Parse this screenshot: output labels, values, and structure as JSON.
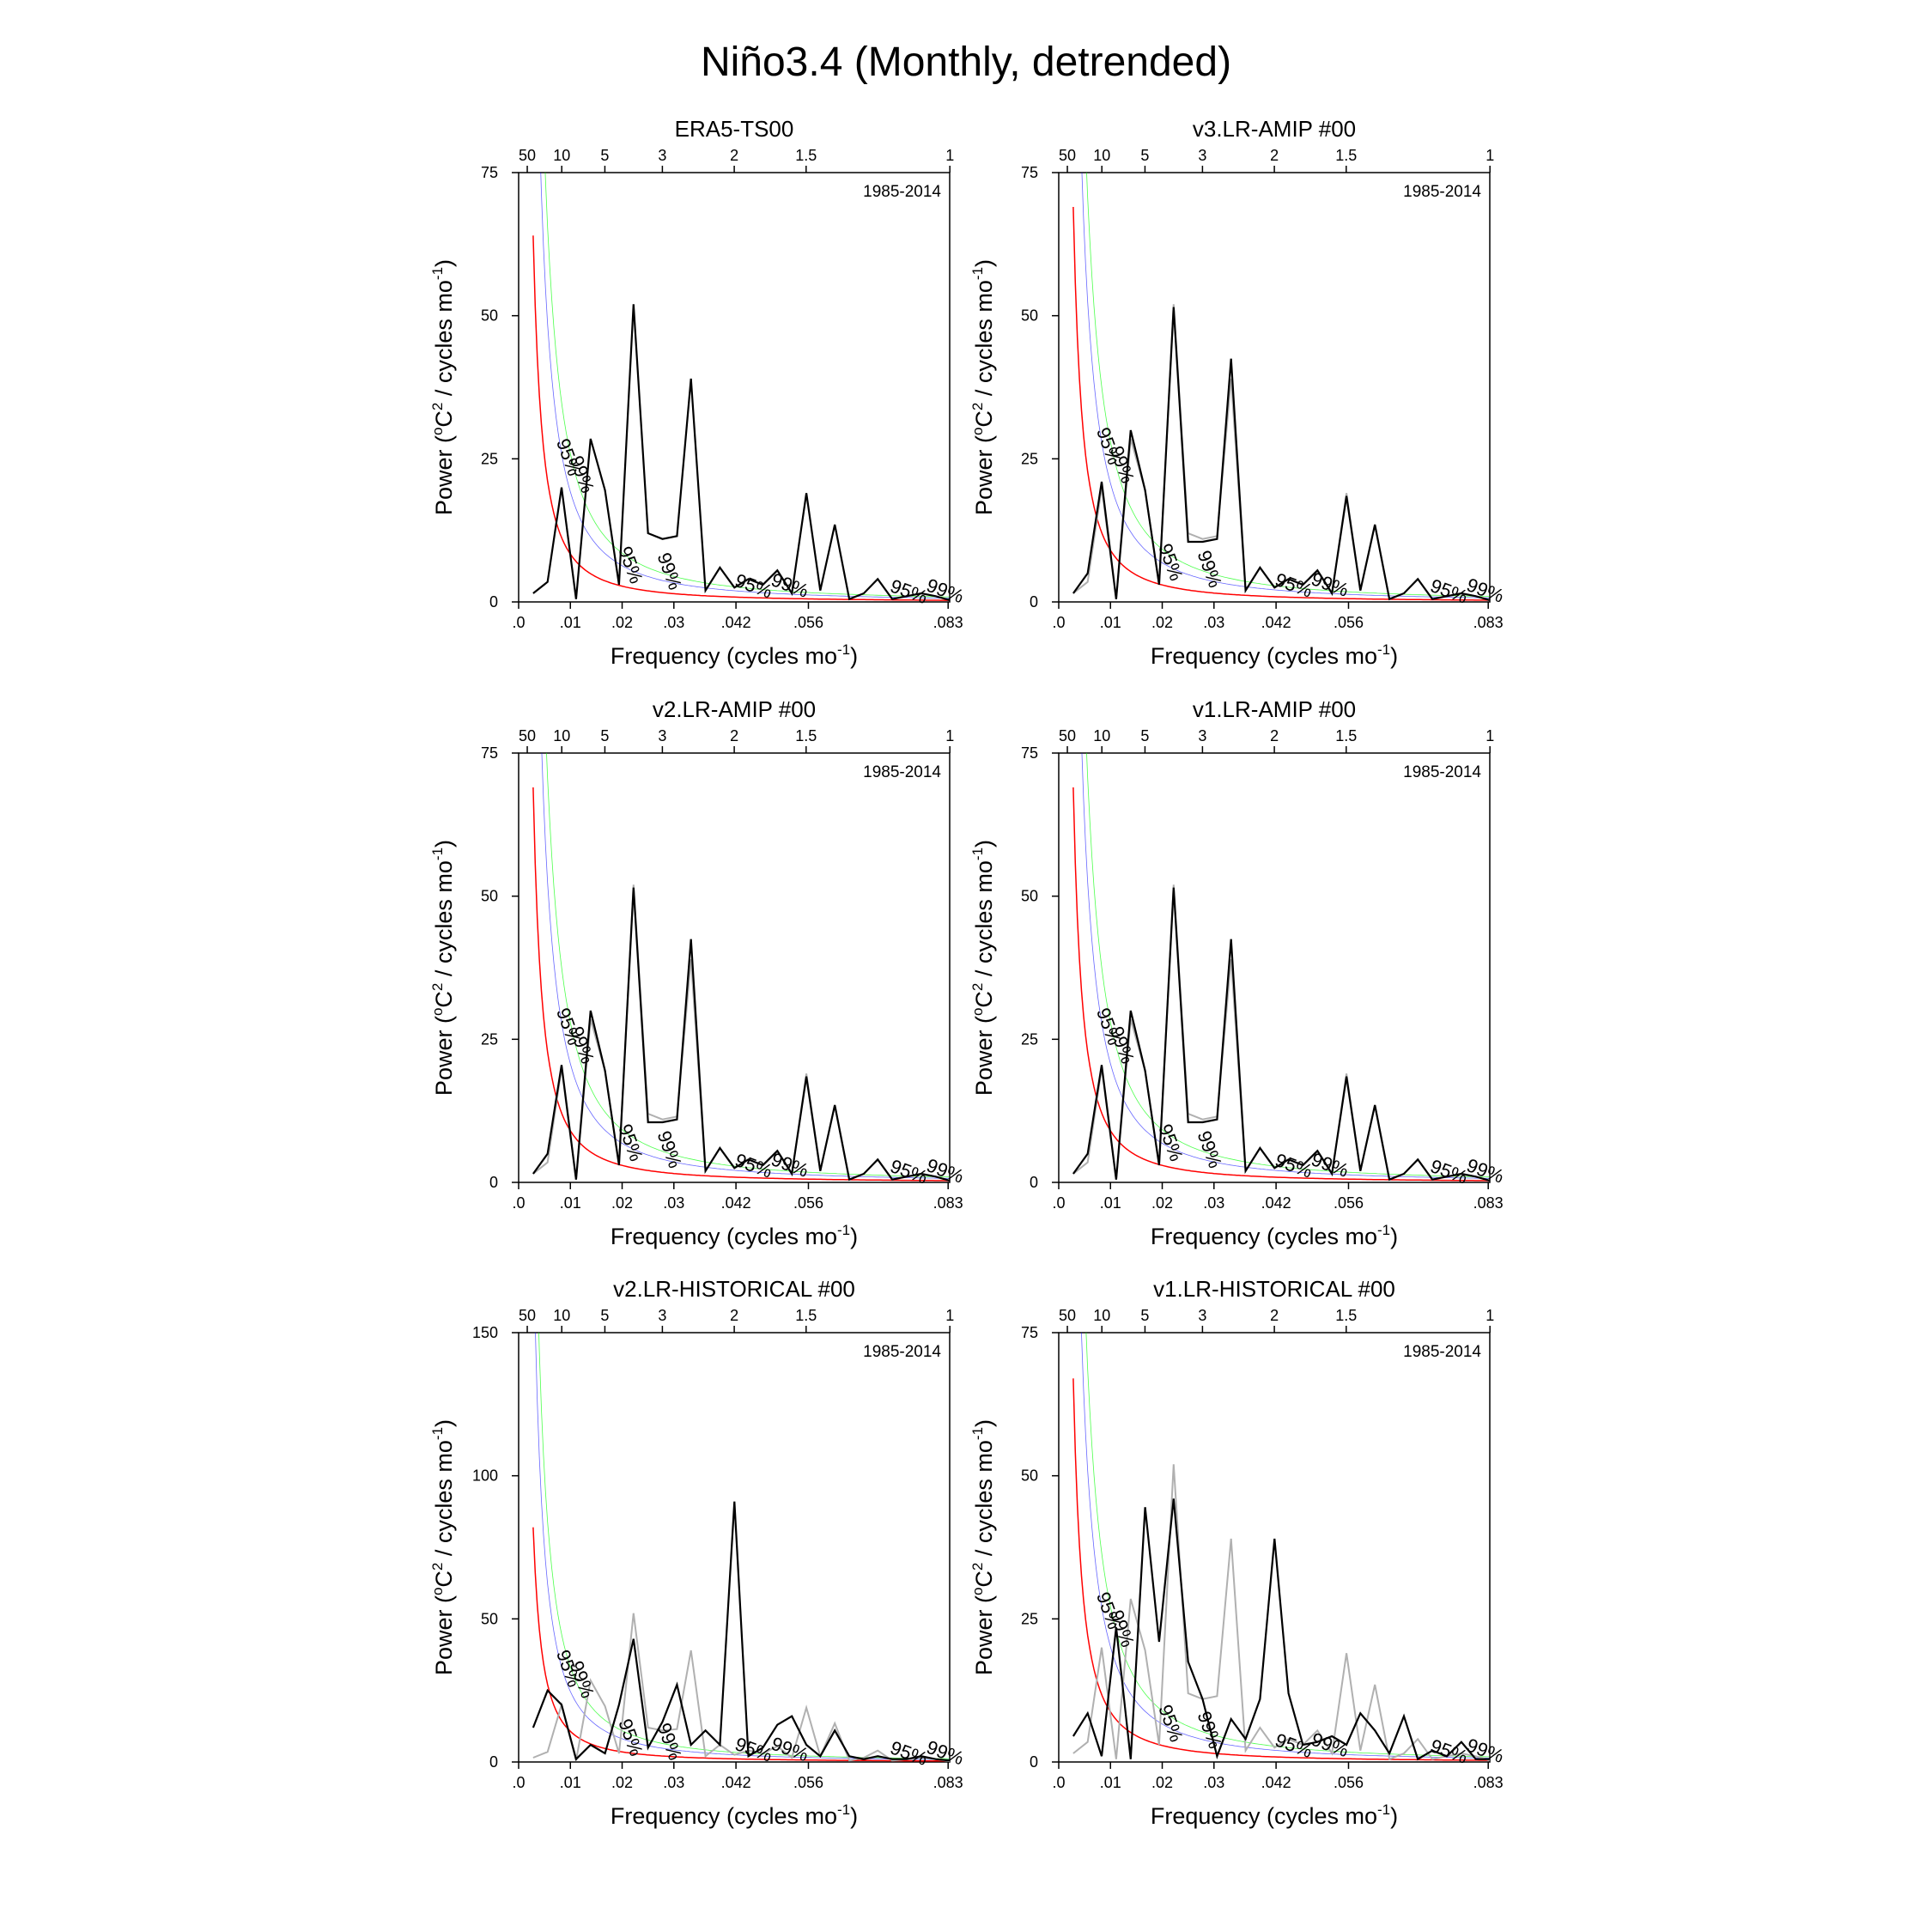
{
  "page_title": "Niño3.4 (Monthly, detrended)",
  "colors": {
    "spectrum": "#000000",
    "reference": "#b0b0b0",
    "red_noise": "#ff0000",
    "conf95": "#0000ff",
    "conf99": "#00ff00"
  },
  "chart_data": [
    {
      "type": "line",
      "title": "ERA5-TS00",
      "period_text": "1985-2014",
      "xlabel": "Frequency (cycles mo",
      "ylabel": "Power (oC2 / cycles mo-1)",
      "xlim": [
        0,
        0.0833
      ],
      "ylim": [
        0,
        75
      ],
      "yticks": [
        0,
        25,
        50,
        75
      ],
      "ytick_labels": [
        "0",
        "25",
        "50",
        "75"
      ],
      "red_noise_start": 64,
      "x": [
        0.0028,
        0.0056,
        0.0083,
        0.0111,
        0.0139,
        0.0167,
        0.0194,
        0.0222,
        0.025,
        0.0278,
        0.0306,
        0.0333,
        0.0361,
        0.0389,
        0.0417,
        0.0444,
        0.0472,
        0.05,
        0.0528,
        0.0556,
        0.0583,
        0.0611,
        0.0639,
        0.0667,
        0.0694,
        0.0722,
        0.075,
        0.0778,
        0.0806,
        0.0833
      ],
      "series": [
        {
          "name": "spectrum",
          "values": [
            1.5,
            3.5,
            20,
            0.5,
            28.5,
            19.5,
            3,
            52,
            12,
            11,
            11.5,
            39,
            2,
            6,
            2.5,
            4,
            3,
            5.5,
            1.5,
            19,
            2,
            13.5,
            0.5,
            1.5,
            4,
            0.5,
            1,
            1.5,
            1,
            0.3
          ]
        }
      ]
    },
    {
      "type": "line",
      "title": "v3.LR-AMIP  #00",
      "period_text": "1985-2014",
      "xlabel": "Frequency (cycles mo",
      "ylabel": "Power (oC2 / cycles mo-1)",
      "xlim": [
        0,
        0.0833
      ],
      "ylim": [
        0,
        75
      ],
      "yticks": [
        0,
        25,
        50,
        75
      ],
      "ytick_labels": [
        "0",
        "25",
        "50",
        "75"
      ],
      "red_noise_start": 69,
      "x": [
        0.0028,
        0.0056,
        0.0083,
        0.0111,
        0.0139,
        0.0167,
        0.0194,
        0.0222,
        0.025,
        0.0278,
        0.0306,
        0.0333,
        0.0361,
        0.0389,
        0.0417,
        0.0444,
        0.0472,
        0.05,
        0.0528,
        0.0556,
        0.0583,
        0.0611,
        0.0639,
        0.0667,
        0.0694,
        0.0722,
        0.075,
        0.0778,
        0.0806,
        0.0833
      ],
      "series": [
        {
          "name": "reference",
          "values": [
            1.5,
            3.5,
            20,
            0.5,
            28.5,
            19.5,
            3,
            52,
            12,
            11,
            11.5,
            39,
            2,
            6,
            2.5,
            4,
            3,
            5.5,
            1.5,
            19,
            2,
            13.5,
            0.5,
            1.5,
            4,
            0.5,
            1,
            1.5,
            1,
            0.3
          ]
        },
        {
          "name": "spectrum",
          "values": [
            1.5,
            5,
            21,
            0.5,
            30,
            19.5,
            3,
            51.5,
            10.5,
            10.5,
            11,
            42.5,
            2,
            6,
            2.5,
            4,
            3,
            5.5,
            1.5,
            18.5,
            2,
            13.5,
            0.5,
            1.5,
            4,
            0.5,
            1,
            1.5,
            1,
            0.3
          ]
        }
      ]
    },
    {
      "type": "line",
      "title": "v2.LR-AMIP  #00",
      "period_text": "1985-2014",
      "xlabel": "Frequency (cycles mo",
      "ylabel": "Power (oC2 / cycles mo-1)",
      "xlim": [
        0,
        0.0833
      ],
      "ylim": [
        0,
        75
      ],
      "yticks": [
        0,
        25,
        50,
        75
      ],
      "ytick_labels": [
        "0",
        "25",
        "50",
        "75"
      ],
      "red_noise_start": 69,
      "x": [
        0.0028,
        0.0056,
        0.0083,
        0.0111,
        0.0139,
        0.0167,
        0.0194,
        0.0222,
        0.025,
        0.0278,
        0.0306,
        0.0333,
        0.0361,
        0.0389,
        0.0417,
        0.0444,
        0.0472,
        0.05,
        0.0528,
        0.0556,
        0.0583,
        0.0611,
        0.0639,
        0.0667,
        0.0694,
        0.0722,
        0.075,
        0.0778,
        0.0806,
        0.0833
      ],
      "series": [
        {
          "name": "reference",
          "values": [
            1.5,
            3.5,
            20,
            0.5,
            28.5,
            19.5,
            3,
            52,
            12,
            11,
            11.5,
            39,
            2,
            6,
            2.5,
            4,
            3,
            5.5,
            1.5,
            19,
            2,
            13.5,
            0.5,
            1.5,
            4,
            0.5,
            1,
            1.5,
            1,
            0.3
          ]
        },
        {
          "name": "spectrum",
          "values": [
            1.5,
            5,
            20.5,
            0.5,
            30,
            19.5,
            3,
            51.5,
            10.5,
            10.5,
            11,
            42.5,
            2,
            6,
            2.5,
            4,
            3,
            5.5,
            1.5,
            18.5,
            2,
            13.5,
            0.5,
            1.5,
            4,
            0.5,
            1,
            1.5,
            1,
            0.3
          ]
        }
      ]
    },
    {
      "type": "line",
      "title": "v1.LR-AMIP  #00",
      "period_text": "1985-2014",
      "xlabel": "Frequency (cycles mo",
      "ylabel": "Power (oC2 / cycles mo-1)",
      "xlim": [
        0,
        0.0833
      ],
      "ylim": [
        0,
        75
      ],
      "yticks": [
        0,
        25,
        50,
        75
      ],
      "ytick_labels": [
        "0",
        "25",
        "50",
        "75"
      ],
      "red_noise_start": 69,
      "x": [
        0.0028,
        0.0056,
        0.0083,
        0.0111,
        0.0139,
        0.0167,
        0.0194,
        0.0222,
        0.025,
        0.0278,
        0.0306,
        0.0333,
        0.0361,
        0.0389,
        0.0417,
        0.0444,
        0.0472,
        0.05,
        0.0528,
        0.0556,
        0.0583,
        0.0611,
        0.0639,
        0.0667,
        0.0694,
        0.0722,
        0.075,
        0.0778,
        0.0806,
        0.0833
      ],
      "series": [
        {
          "name": "reference",
          "values": [
            1.5,
            3.5,
            20,
            0.5,
            28.5,
            19.5,
            3,
            52,
            12,
            11,
            11.5,
            39,
            2,
            6,
            2.5,
            4,
            3,
            5.5,
            1.5,
            19,
            2,
            13.5,
            0.5,
            1.5,
            4,
            0.5,
            1,
            1.5,
            1,
            0.3
          ]
        },
        {
          "name": "spectrum",
          "values": [
            1.5,
            5,
            20.5,
            0.5,
            30,
            19.5,
            3,
            51.5,
            10.5,
            10.5,
            11,
            42.5,
            2,
            6,
            2.5,
            4,
            3,
            5.5,
            1.5,
            18.5,
            2,
            13.5,
            0.5,
            1.5,
            4,
            0.5,
            1,
            1.5,
            1,
            0.3
          ]
        }
      ]
    },
    {
      "type": "line",
      "title": "v2.LR-HISTORICAL  #00",
      "period_text": "1985-2014",
      "xlabel": "Frequency (cycles mo",
      "ylabel": "Power (oC2 / cycles mo-1)",
      "xlim": [
        0,
        0.0833
      ],
      "ylim": [
        0,
        150
      ],
      "yticks": [
        0,
        50,
        100,
        150
      ],
      "ytick_labels": [
        "0",
        "50",
        "100",
        "150"
      ],
      "red_noise_start": 82,
      "x": [
        0.0028,
        0.0056,
        0.0083,
        0.0111,
        0.0139,
        0.0167,
        0.0194,
        0.0222,
        0.025,
        0.0278,
        0.0306,
        0.0333,
        0.0361,
        0.0389,
        0.0417,
        0.0444,
        0.0472,
        0.05,
        0.0528,
        0.0556,
        0.0583,
        0.0611,
        0.0639,
        0.0667,
        0.0694,
        0.0722,
        0.075,
        0.0778,
        0.0806,
        0.0833
      ],
      "series": [
        {
          "name": "reference",
          "values": [
            1.5,
            3.5,
            20,
            0.5,
            28.5,
            19.5,
            3,
            52,
            12,
            11,
            11.5,
            39,
            2,
            6,
            2.5,
            4,
            3,
            5.5,
            1.5,
            19,
            2,
            13.5,
            0.5,
            1.5,
            4,
            0.5,
            1,
            1.5,
            1,
            0.3
          ]
        },
        {
          "name": "spectrum",
          "values": [
            12,
            25,
            20,
            1,
            6,
            3,
            20,
            43,
            5,
            14,
            27,
            6,
            11,
            6,
            91,
            2,
            5,
            13,
            16,
            6,
            2,
            11,
            2,
            1,
            2,
            1,
            1,
            2,
            1,
            0.5
          ]
        }
      ]
    },
    {
      "type": "line",
      "title": "v1.LR-HISTORICAL  #00",
      "period_text": "1985-2014",
      "xlabel": "Frequency (cycles mo",
      "ylabel": "Power (oC2 / cycles mo-1)",
      "xlim": [
        0,
        0.0833
      ],
      "ylim": [
        0,
        75
      ],
      "yticks": [
        0,
        25,
        50,
        75
      ],
      "ytick_labels": [
        "0",
        "25",
        "50",
        "75"
      ],
      "red_noise_start": 67,
      "x": [
        0.0028,
        0.0056,
        0.0083,
        0.0111,
        0.0139,
        0.0167,
        0.0194,
        0.0222,
        0.025,
        0.0278,
        0.0306,
        0.0333,
        0.0361,
        0.0389,
        0.0417,
        0.0444,
        0.0472,
        0.05,
        0.0528,
        0.0556,
        0.0583,
        0.0611,
        0.0639,
        0.0667,
        0.0694,
        0.0722,
        0.075,
        0.0778,
        0.0806,
        0.0833
      ],
      "series": [
        {
          "name": "reference",
          "values": [
            1.5,
            3.5,
            20,
            0.5,
            28.5,
            19.5,
            3,
            52,
            12,
            11,
            11.5,
            39,
            2,
            6,
            2.5,
            4,
            3,
            5.5,
            1.5,
            19,
            2,
            13.5,
            0.5,
            1.5,
            4,
            0.5,
            1,
            1.5,
            1,
            0.3
          ]
        },
        {
          "name": "spectrum",
          "values": [
            4.5,
            8.5,
            1,
            23.5,
            0.5,
            44.5,
            21,
            46,
            17.5,
            11,
            1,
            7.5,
            4,
            11,
            39,
            12,
            3,
            3.5,
            4.5,
            3,
            8.5,
            5.5,
            1.5,
            8,
            0.5,
            2,
            1,
            3.5,
            0.5,
            0.5
          ]
        }
      ]
    }
  ],
  "x_axis": {
    "bottom_ticks": [
      0,
      0.01,
      0.02,
      0.03,
      0.042,
      0.056,
      0.083
    ],
    "bottom_labels": [
      ".0",
      ".01",
      ".02",
      ".03",
      ".042",
      ".056",
      ".083"
    ],
    "top_periods": [
      50,
      10,
      5,
      3,
      2,
      1.5,
      1
    ],
    "top_labels": [
      "50",
      "10",
      "5",
      "3",
      "2",
      "1.5",
      "1"
    ],
    "label_superscript": "-1",
    "label_close": ")"
  },
  "ylabel_parts": {
    "a": "Power (",
    "sup1": "o",
    "b": "C",
    "sup2": "2",
    "c": " / cycles mo",
    "sup3": "-1",
    "d": ")"
  },
  "confidence_labels": {
    "c95": "95%",
    "c99": "99%"
  }
}
